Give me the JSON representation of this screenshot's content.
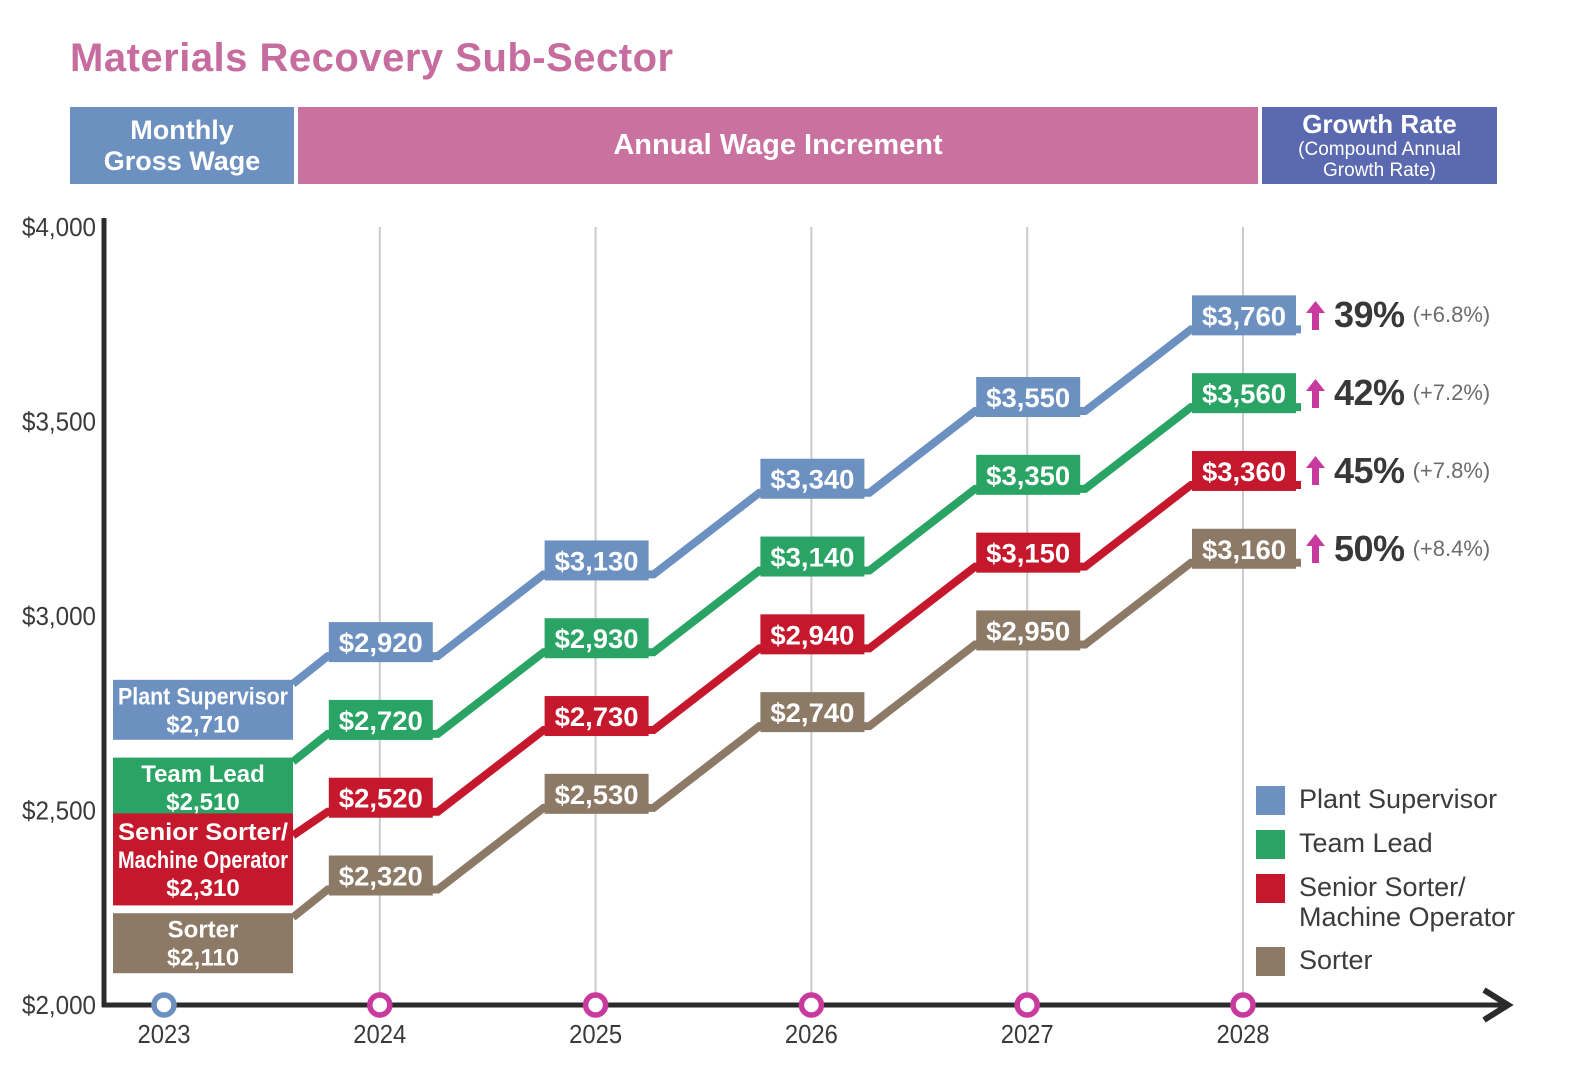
{
  "title": "Materials Recovery Sub-Sector",
  "header": {
    "monthly_line1": "Monthly",
    "monthly_line2": "Gross Wage",
    "annual_wage_increment": "Annual Wage Increment",
    "growth_rate_title": "Growth Rate",
    "growth_rate_sub1": "(Compound Annual",
    "growth_rate_sub2": "Growth Rate)"
  },
  "y_axis": {
    "tick_values": [
      4000,
      3500,
      3000,
      2500,
      2000
    ],
    "tick_labels": [
      "$4,000",
      "$3,500",
      "$3,000",
      "$2,500",
      "$2,000"
    ]
  },
  "x_axis": {
    "tick_labels": [
      "2023",
      "2024",
      "2025",
      "2026",
      "2027",
      "2028"
    ]
  },
  "chart_data": {
    "type": "line",
    "title": "Materials Recovery Sub-Sector",
    "x": [
      2023,
      2024,
      2025,
      2026,
      2027,
      2028
    ],
    "ylim": [
      2000,
      4000
    ],
    "y_tick_step": 500,
    "grid": "vertical gridlines at years 2024-2028",
    "legend_position": "bottom-right",
    "axis_marker_colors": {
      "first_year": "#6C90C0",
      "other_years": "#C93A9E"
    },
    "series": [
      {
        "name": "Plant Supervisor",
        "color": "#6C90C0",
        "values": [
          2710,
          2920,
          3130,
          3340,
          3550,
          3760
        ],
        "value_labels": [
          "$2,710",
          "$2,920",
          "$3,130",
          "$3,340",
          "$3,550",
          "$3,760"
        ],
        "start_box_lines": [
          "Plant Supervisor",
          "$2,710"
        ],
        "legend_lines": [
          "Plant Supervisor"
        ],
        "growth_total": "39%",
        "cagr": "(+6.8%)"
      },
      {
        "name": "Team Lead",
        "color": "#2AA464",
        "values": [
          2510,
          2720,
          2930,
          3140,
          3350,
          3560
        ],
        "value_labels": [
          "$2,510",
          "$2,720",
          "$2,930",
          "$3,140",
          "$3,350",
          "$3,560"
        ],
        "start_box_lines": [
          "Team Lead",
          "$2,510"
        ],
        "legend_lines": [
          "Team Lead"
        ],
        "growth_total": "42%",
        "cagr": "(+7.2%)"
      },
      {
        "name": "Senior Sorter/Machine Operator",
        "color": "#C5182C",
        "values": [
          2310,
          2520,
          2730,
          2940,
          3150,
          3360
        ],
        "value_labels": [
          "$2,310",
          "$2,520",
          "$2,730",
          "$2,940",
          "$3,150",
          "$3,360"
        ],
        "start_box_lines": [
          "Senior Sorter/",
          "Machine Operator",
          "$2,310"
        ],
        "legend_lines": [
          "Senior Sorter/",
          "Machine Operator"
        ],
        "growth_total": "45%",
        "cagr": "(+7.8%)"
      },
      {
        "name": "Sorter",
        "color": "#8C7A66",
        "values": [
          2110,
          2320,
          2530,
          2740,
          2950,
          3160
        ],
        "value_labels": [
          "$2,110",
          "$2,320",
          "$2,530",
          "$2,740",
          "$2,950",
          "$3,160"
        ],
        "start_box_lines": [
          "Sorter",
          "$2,110"
        ],
        "legend_lines": [
          "Sorter"
        ],
        "growth_total": "50%",
        "cagr": "(+8.4%)"
      }
    ]
  },
  "colors": {
    "title_pink": "#C76C9E",
    "header_pink": "#C9719F",
    "header_blue": "#6C90C0",
    "header_indigo": "#5B69B1",
    "magenta_accent": "#C93A9E",
    "axis": "#2B2B2B",
    "gridline": "#CBCBCB",
    "tick_text": "#3A3A3A"
  }
}
